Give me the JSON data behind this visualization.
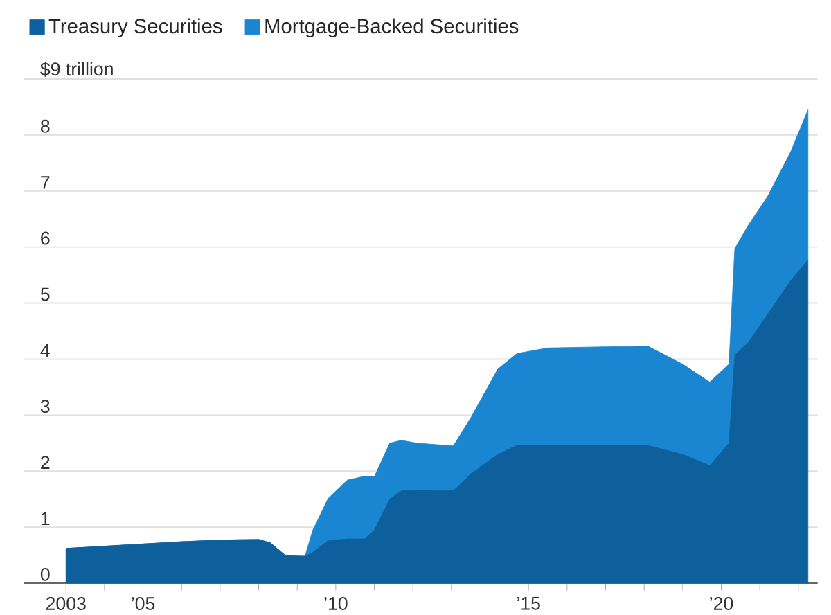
{
  "chart_data": {
    "type": "area",
    "stacked": true,
    "x": [
      2003.0,
      2004.0,
      2005.0,
      2006.0,
      2007.0,
      2008.0,
      2008.3,
      2008.7,
      2009.2,
      2009.4,
      2009.8,
      2010.3,
      2010.75,
      2011.0,
      2011.4,
      2011.7,
      2012.1,
      2013.05,
      2013.5,
      2014.2,
      2014.7,
      2015.5,
      2017.0,
      2018.1,
      2019.0,
      2019.7,
      2020.2,
      2020.35,
      2020.7,
      2021.2,
      2021.8,
      2022.25
    ],
    "series": [
      {
        "name": "Treasury Securities",
        "color": "#0e609c",
        "values": [
          0.62,
          0.66,
          0.7,
          0.74,
          0.77,
          0.78,
          0.72,
          0.49,
          0.48,
          0.55,
          0.76,
          0.79,
          0.79,
          0.95,
          1.5,
          1.65,
          1.66,
          1.65,
          1.95,
          2.3,
          2.46,
          2.46,
          2.46,
          2.46,
          2.3,
          2.1,
          2.5,
          4.07,
          4.3,
          4.8,
          5.4,
          5.77
        ]
      },
      {
        "name": "Mortgage-Backed Securities",
        "color": "#1a86d2",
        "values": [
          0,
          0,
          0,
          0,
          0,
          0,
          0,
          0,
          0,
          0.39,
          0.75,
          1.05,
          1.12,
          0.95,
          1.0,
          0.9,
          0.84,
          0.8,
          1.0,
          1.52,
          1.64,
          1.74,
          1.76,
          1.77,
          1.61,
          1.49,
          1.41,
          1.9,
          2.09,
          2.1,
          2.3,
          2.68
        ]
      }
    ],
    "xlim": [
      2001.9,
      2022.5
    ],
    "xticks": [
      {
        "value": 2003,
        "label": "2003"
      },
      {
        "value": 2004,
        "label": null
      },
      {
        "value": 2005,
        "label": "’05"
      },
      {
        "value": 2006,
        "label": null
      },
      {
        "value": 2007,
        "label": null
      },
      {
        "value": 2008,
        "label": null
      },
      {
        "value": 2009,
        "label": null
      },
      {
        "value": 2010,
        "label": "’10"
      },
      {
        "value": 2011,
        "label": null
      },
      {
        "value": 2012,
        "label": null
      },
      {
        "value": 2013,
        "label": null
      },
      {
        "value": 2014,
        "label": null
      },
      {
        "value": 2015,
        "label": "’15"
      },
      {
        "value": 2016,
        "label": null
      },
      {
        "value": 2017,
        "label": null
      },
      {
        "value": 2018,
        "label": null
      },
      {
        "value": 2019,
        "label": null
      },
      {
        "value": 2020,
        "label": "’20"
      },
      {
        "value": 2021,
        "label": null
      },
      {
        "value": 2022,
        "label": null
      }
    ],
    "ylim": [
      0,
      9
    ],
    "yticks": [
      0,
      1,
      2,
      3,
      4,
      5,
      6,
      7,
      8,
      {
        "value": 9,
        "label": "$9 trillion"
      }
    ],
    "grid": "y",
    "legend": "top left"
  }
}
